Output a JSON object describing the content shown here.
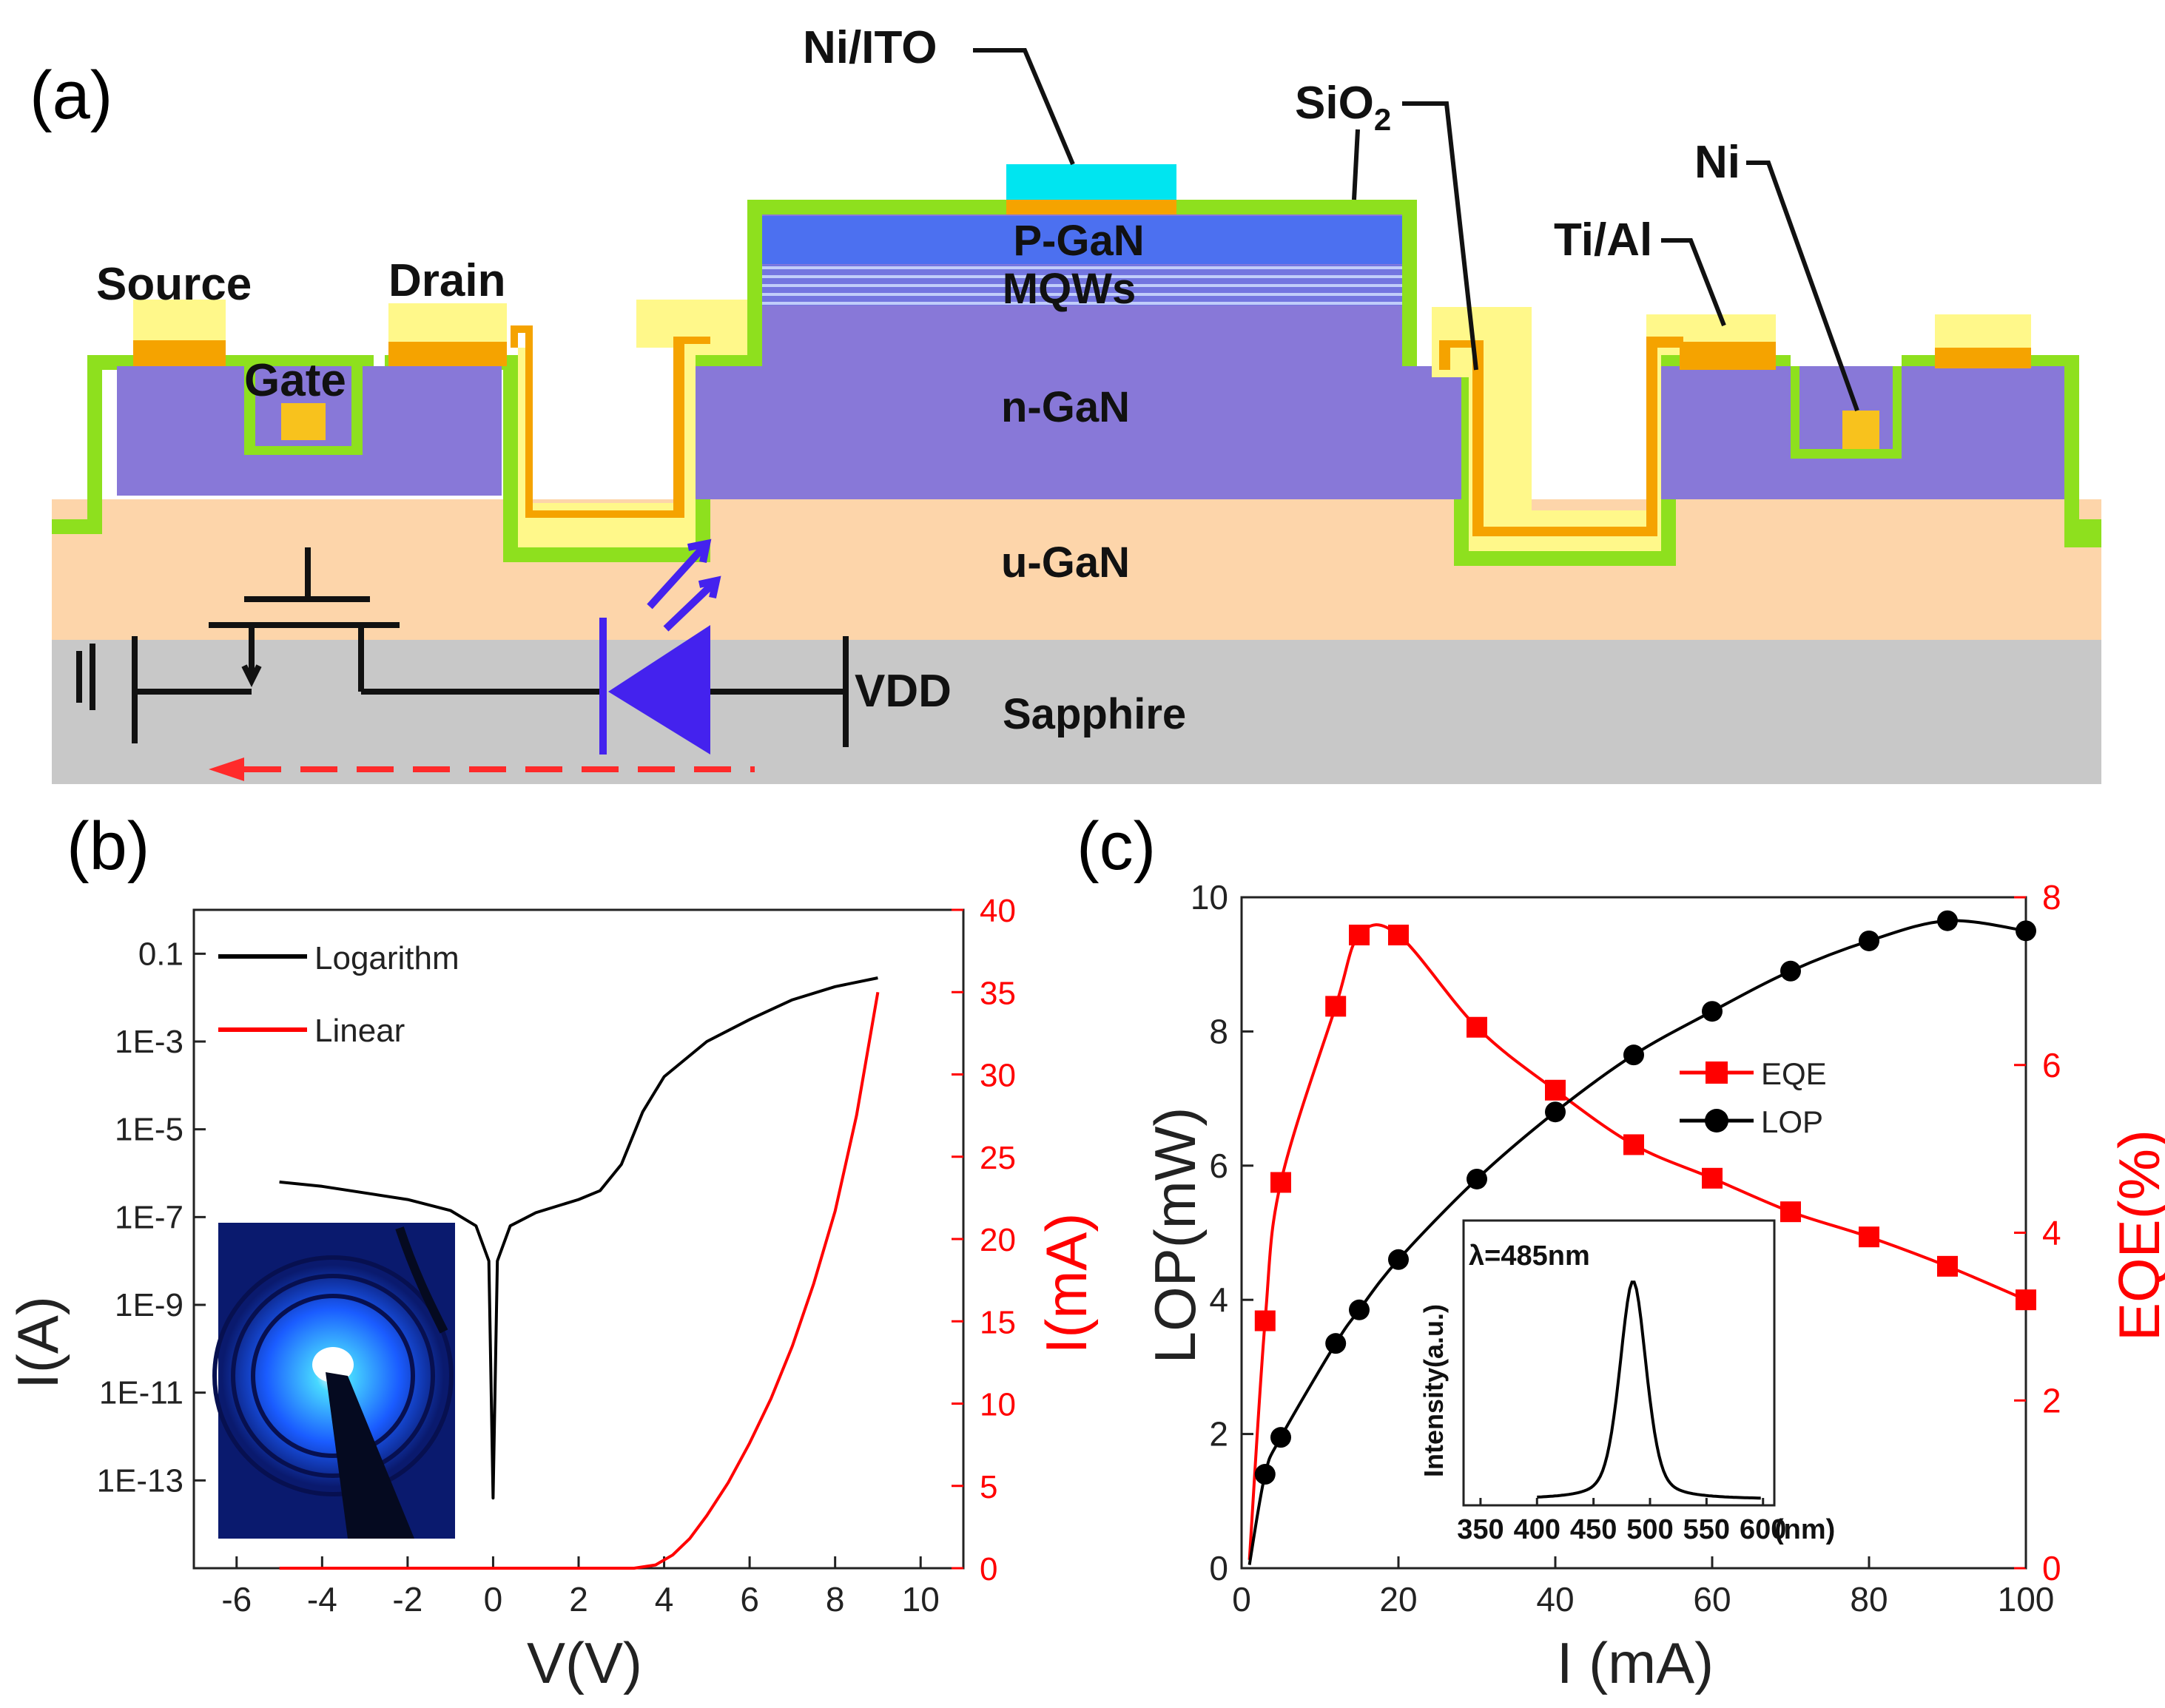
{
  "panel_a": {
    "label": "(a)",
    "layers": {
      "p_gan": "P-GaN",
      "mqws": "MQWs",
      "n_gan": "n-GaN",
      "u_gan": "u-GaN",
      "sapphire": "Sapphire"
    },
    "callouts": {
      "ni_ito": "Ni/ITO",
      "sio2": "SiO",
      "sio2_sub": "2",
      "ni": "Ni",
      "ti_al": "Ti/Al"
    },
    "terminals": {
      "source": "Source",
      "drain": "Drain",
      "gate": "Gate",
      "vdd": "VDD"
    },
    "colors": {
      "sapphire": "#c8c8c8",
      "u_gan": "#fdd5aa",
      "n_gan": "#8878d8",
      "p_gan": "#4c70f0",
      "sio2": "#8ee01e",
      "ti_al": "#f5a300",
      "ito": "#00e5f0",
      "pad": "#fff88a",
      "circuit": "#4422ee",
      "current_arrow": "#ff2a2a"
    }
  },
  "panel_b": {
    "label": "(b)",
    "inset_description": "photo",
    "chart_data": {
      "type": "line",
      "xlabel": "V(V)",
      "ylabel_left": "I(A)",
      "ylabel_right": "I(mA)",
      "xlim": [
        -7,
        11
      ],
      "x_ticks": [
        -6,
        -4,
        -2,
        0,
        2,
        4,
        6,
        8,
        10
      ],
      "y_left_log_exp_lim": [
        -15,
        0
      ],
      "y_left_ticks": [
        "0.1",
        "1E-3",
        "1E-5",
        "1E-7",
        "1E-9",
        "1E-11",
        "1E-13"
      ],
      "y_left_tick_exps": [
        -1,
        -3,
        -5,
        -7,
        -9,
        -11,
        -13
      ],
      "ylim_right": [
        0,
        40
      ],
      "y_right_ticks": [
        0,
        5,
        10,
        15,
        20,
        25,
        30,
        35,
        40
      ],
      "legend_position": "top-left",
      "series": [
        {
          "name": "Logarithm",
          "axis": "left-log",
          "color": "#000000",
          "points": [
            [
              -5,
              -6.2
            ],
            [
              -4,
              -6.3
            ],
            [
              -3,
              -6.45
            ],
            [
              -2,
              -6.6
            ],
            [
              -1,
              -6.85
            ],
            [
              -0.4,
              -7.2
            ],
            [
              -0.1,
              -8.0
            ],
            [
              0,
              -13.4
            ],
            [
              0.1,
              -8.0
            ],
            [
              0.4,
              -7.2
            ],
            [
              1,
              -6.9
            ],
            [
              2,
              -6.6
            ],
            [
              2.5,
              -6.4
            ],
            [
              3,
              -5.8
            ],
            [
              3.5,
              -4.6
            ],
            [
              4,
              -3.8
            ],
            [
              5,
              -3.0
            ],
            [
              6,
              -2.5
            ],
            [
              7,
              -2.05
            ],
            [
              8,
              -1.75
            ],
            [
              9,
              -1.55
            ]
          ]
        },
        {
          "name": "Linear",
          "axis": "right-linear",
          "color": "#ff0000",
          "points": [
            [
              -5,
              0
            ],
            [
              3.3,
              0
            ],
            [
              3.8,
              0.2
            ],
            [
              4.2,
              0.8
            ],
            [
              4.6,
              1.8
            ],
            [
              5,
              3.2
            ],
            [
              5.5,
              5.2
            ],
            [
              6,
              7.6
            ],
            [
              6.5,
              10.3
            ],
            [
              7,
              13.5
            ],
            [
              7.5,
              17.3
            ],
            [
              8,
              21.7
            ],
            [
              8.5,
              27.5
            ],
            [
              9,
              35
            ]
          ]
        }
      ]
    }
  },
  "panel_c": {
    "label": "(c)",
    "chart_data": {
      "type": "line",
      "xlabel": "I (mA)",
      "ylabel_left": "LOP(mW)",
      "ylabel_right": "EQE(%)",
      "xlim": [
        0,
        100
      ],
      "x_ticks": [
        0,
        20,
        40,
        60,
        80,
        100
      ],
      "ylim_left": [
        0,
        10
      ],
      "y_left_ticks": [
        0,
        2,
        4,
        6,
        8,
        10
      ],
      "ylim_right": [
        0,
        8
      ],
      "y_right_ticks": [
        0,
        2,
        4,
        6,
        8
      ],
      "legend_position": "center-right",
      "series": [
        {
          "name": "EQE",
          "axis": "right",
          "color": "#ff0000",
          "marker": "square",
          "x": [
            1,
            3,
            5,
            12,
            15,
            20,
            30,
            40,
            50,
            60,
            70,
            80,
            90,
            100
          ],
          "y": [
            0.1,
            2.95,
            4.6,
            6.7,
            7.55,
            7.55,
            6.45,
            5.7,
            5.05,
            4.65,
            4.25,
            3.95,
            3.6,
            3.2
          ]
        },
        {
          "name": "LOP",
          "axis": "left",
          "color": "#000000",
          "marker": "circle",
          "x": [
            1,
            3,
            5,
            12,
            15,
            20,
            30,
            40,
            50,
            60,
            70,
            80,
            90,
            100
          ],
          "y": [
            0.05,
            1.4,
            1.95,
            3.35,
            3.85,
            4.6,
            5.8,
            6.8,
            7.65,
            8.3,
            8.9,
            9.35,
            9.65,
            9.5
          ]
        }
      ],
      "inset": {
        "type": "line",
        "annotation": "λ=485nm",
        "ylabel": "Intensity(a.u.)",
        "x_ticks": [
          350,
          400,
          450,
          500,
          550,
          600
        ],
        "x_unit": "(nm)",
        "xlim": [
          335,
          610
        ],
        "peak_nm": 485,
        "fwhm_nm": 28
      }
    }
  }
}
